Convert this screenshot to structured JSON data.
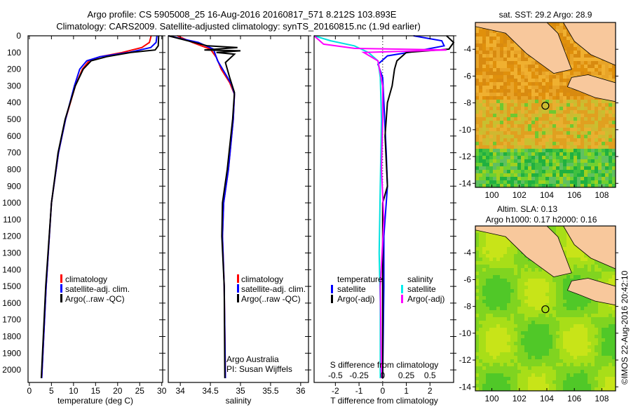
{
  "title": {
    "line1": "Argo profile: CS 5905008_25 16-Aug-2016 20160817_571 8.212S 103.893E",
    "line2": "Climatology: CARS2009. Satellite-adjusted climatology: synTS_20160815.nc (1.9d earlier)"
  },
  "side_credit": "©IMOS 22-Aug-2016 20:42:10",
  "chart_data": [
    {
      "type": "line",
      "id": "temperature",
      "xlabel": "temperature (deg C)",
      "xlim": [
        -0.3,
        30.2
      ],
      "ylim": [
        0,
        2075
      ],
      "xticks": [
        0,
        5,
        10,
        15,
        20,
        25,
        30
      ],
      "yticks": [
        0,
        100,
        200,
        300,
        400,
        500,
        600,
        700,
        800,
        900,
        1000,
        1100,
        1200,
        1300,
        1400,
        1500,
        1600,
        1700,
        1800,
        1900,
        2000
      ],
      "legend": [
        "climatology",
        "satellite-adj. clim.",
        "Argo(..raw -QC)"
      ],
      "series": [
        {
          "name": "climatology",
          "color": "#ff0000",
          "points": [
            [
              27.6,
              0
            ],
            [
              27.2,
              40
            ],
            [
              25.5,
              70
            ],
            [
              21,
              100
            ],
            [
              16,
              125
            ],
            [
              13.5,
              150
            ],
            [
              12,
              200
            ],
            [
              10.4,
              300
            ],
            [
              8.2,
              500
            ],
            [
              6.6,
              700
            ],
            [
              5,
              1000
            ],
            [
              3.8,
              1500
            ],
            [
              2.8,
              2050
            ]
          ]
        },
        {
          "name": "satellite-adj. clim.",
          "color": "#0000ff",
          "points": [
            [
              28.9,
              0
            ],
            [
              28.7,
              40
            ],
            [
              27.5,
              70
            ],
            [
              22.5,
              100
            ],
            [
              16,
              125
            ],
            [
              13,
              150
            ],
            [
              11.4,
              200
            ],
            [
              10.2,
              300
            ],
            [
              8.2,
              500
            ],
            [
              6.6,
              700
            ],
            [
              5,
              1000
            ],
            [
              3.8,
              1500
            ],
            [
              2.8,
              2050
            ]
          ]
        },
        {
          "name": "Argo(..raw -QC)",
          "color": "#000000",
          "points": [
            [
              29.3,
              0
            ],
            [
              29.2,
              60
            ],
            [
              28.5,
              85
            ],
            [
              23,
              100
            ],
            [
              17.5,
              125
            ],
            [
              14,
              150
            ],
            [
              12.2,
              200
            ],
            [
              10.4,
              300
            ],
            [
              8.1,
              500
            ],
            [
              6.5,
              700
            ],
            [
              5,
              1000
            ],
            [
              3.7,
              1500
            ],
            [
              2.7,
              2050
            ]
          ]
        }
      ]
    },
    {
      "type": "line",
      "id": "salinity",
      "xlabel": "salinity",
      "xlim": [
        33.8,
        36.13
      ],
      "ylim": [
        0,
        2075
      ],
      "xticks": [
        34,
        34.5,
        35,
        35.5,
        36
      ],
      "legend": [
        "climatology",
        "satellite-adj. clim.",
        "Argo(..raw -QC)"
      ],
      "annotation": [
        "Argo Australia",
        "PI: Susan Wijffels"
      ],
      "series": [
        {
          "name": "climatology",
          "color": "#ff0000",
          "points": [
            [
              33.95,
              0
            ],
            [
              34.2,
              40
            ],
            [
              34.5,
              80
            ],
            [
              34.6,
              130
            ],
            [
              34.68,
              200
            ],
            [
              34.82,
              280
            ],
            [
              34.9,
              350
            ],
            [
              34.88,
              500
            ],
            [
              34.8,
              800
            ],
            [
              34.72,
              1000
            ],
            [
              34.7,
              1200
            ],
            [
              34.73,
              1500
            ],
            [
              34.75,
              2050
            ]
          ]
        },
        {
          "name": "satellite-adj. clim.",
          "color": "#0000ff",
          "points": [
            [
              33.8,
              0
            ],
            [
              34.3,
              40
            ],
            [
              34.55,
              80
            ],
            [
              34.62,
              150
            ],
            [
              34.72,
              210
            ],
            [
              34.85,
              290
            ],
            [
              34.9,
              350
            ],
            [
              34.88,
              500
            ],
            [
              34.8,
              800
            ],
            [
              34.72,
              1000
            ],
            [
              34.7,
              1200
            ],
            [
              34.73,
              1500
            ],
            [
              34.75,
              2050
            ]
          ]
        },
        {
          "name": "Argo(..raw -QC)",
          "color": "#000000",
          "points": [
            [
              33.8,
              0
            ],
            [
              34.45,
              60
            ],
            [
              34.95,
              70
            ],
            [
              34.4,
              85
            ],
            [
              35,
              90
            ],
            [
              34.6,
              100
            ],
            [
              34.9,
              110
            ],
            [
              34.75,
              160
            ],
            [
              34.82,
              250
            ],
            [
              34.9,
              340
            ],
            [
              34.87,
              500
            ],
            [
              34.78,
              800
            ],
            [
              34.7,
              1000
            ],
            [
              34.69,
              1200
            ],
            [
              34.73,
              1500
            ],
            [
              34.74,
              2050
            ]
          ]
        }
      ]
    },
    {
      "type": "line",
      "id": "difference",
      "xlabel": "T difference from climatology",
      "x2label": "S difference from climatology",
      "xlim": [
        -2.9,
        3.0
      ],
      "ylim": [
        0,
        2075
      ],
      "xticks": [
        -2,
        -1,
        0,
        1,
        2
      ],
      "x2ticks": [
        "-0.5",
        "-0.25",
        "0",
        "0.25",
        "0.5"
      ],
      "legend": {
        "temperature_title": "temperature",
        "salinity_title": "salinity",
        "temperature": [
          "satellite",
          "Argo(-adj)"
        ],
        "salinity": [
          "satellite",
          "Argo(-adj)"
        ]
      },
      "series": [
        {
          "name": "T satellite",
          "color": "#0000ff",
          "points": [
            [
              1.3,
              0
            ],
            [
              2.5,
              30
            ],
            [
              2.6,
              60
            ],
            [
              1.5,
              90
            ],
            [
              0.2,
              120
            ],
            [
              -0.2,
              170
            ],
            [
              0,
              250
            ],
            [
              0.05,
              400
            ],
            [
              0.15,
              700
            ],
            [
              0.2,
              900
            ],
            [
              0.05,
              1200
            ],
            [
              0.05,
              1500
            ],
            [
              0,
              2050
            ]
          ]
        },
        {
          "name": "T Argo(-adj)",
          "color": "#000000",
          "points": [
            [
              2.7,
              0
            ],
            [
              3,
              40
            ],
            [
              2.8,
              80
            ],
            [
              1,
              100
            ],
            [
              0.6,
              150
            ],
            [
              0.5,
              200
            ],
            [
              0.4,
              300
            ],
            [
              0.2,
              400
            ],
            [
              0.1,
              600
            ],
            [
              0.2,
              900
            ],
            [
              0,
              1000
            ],
            [
              0,
              1500
            ],
            [
              0,
              2050
            ]
          ]
        },
        {
          "name": "S satellite",
          "color": "#00e0e0",
          "points": [
            [
              -2.9,
              0
            ],
            [
              -2.2,
              30
            ],
            [
              -1.2,
              60
            ],
            [
              -0.6,
              100
            ],
            [
              -0.2,
              150
            ],
            [
              -0.1,
              250
            ],
            [
              -0.05,
              500
            ],
            [
              -0.1,
              900
            ],
            [
              -0.15,
              1300
            ],
            [
              -0.1,
              1600
            ],
            [
              -0.1,
              2050
            ]
          ]
        },
        {
          "name": "S Argo(-adj)",
          "color": "#ff00ff",
          "points": [
            [
              -2.9,
              0
            ],
            [
              -2.5,
              50
            ],
            [
              -1.2,
              75
            ],
            [
              2.7,
              85
            ],
            [
              -0.8,
              100
            ],
            [
              -0.2,
              150
            ],
            [
              0,
              300
            ],
            [
              0,
              500
            ],
            [
              -0.05,
              800
            ],
            [
              0.05,
              1100
            ],
            [
              -0.1,
              1500
            ],
            [
              -0.05,
              2050
            ]
          ]
        }
      ]
    }
  ],
  "maps": {
    "sst": {
      "title": "sat. SST: 29.2 Argo: 28.9",
      "xticks": [
        "100",
        "102",
        "104",
        "106",
        "108"
      ],
      "yticks": [
        "-4",
        "-6",
        "-8",
        "-10",
        "-12",
        "-14"
      ]
    },
    "sla": {
      "title1": "Altim. SLA: 0.13",
      "title2": "Argo h1000: 0.17 h2000: 0.16",
      "xticks": [
        "100",
        "102",
        "104",
        "106",
        "108"
      ],
      "yticks": [
        "-4",
        "-6",
        "-8",
        "-10",
        "-12",
        "-14"
      ]
    },
    "argo_position": {
      "lon": 103.893,
      "lat": -8.212
    },
    "lon_range": [
      98.8,
      109.0
    ],
    "lat_range": [
      -2.0,
      -14.3
    ]
  },
  "colors": {
    "land": "#f8c89c",
    "sst_base": "#e09a20",
    "sla_base": "#8fd81c"
  }
}
